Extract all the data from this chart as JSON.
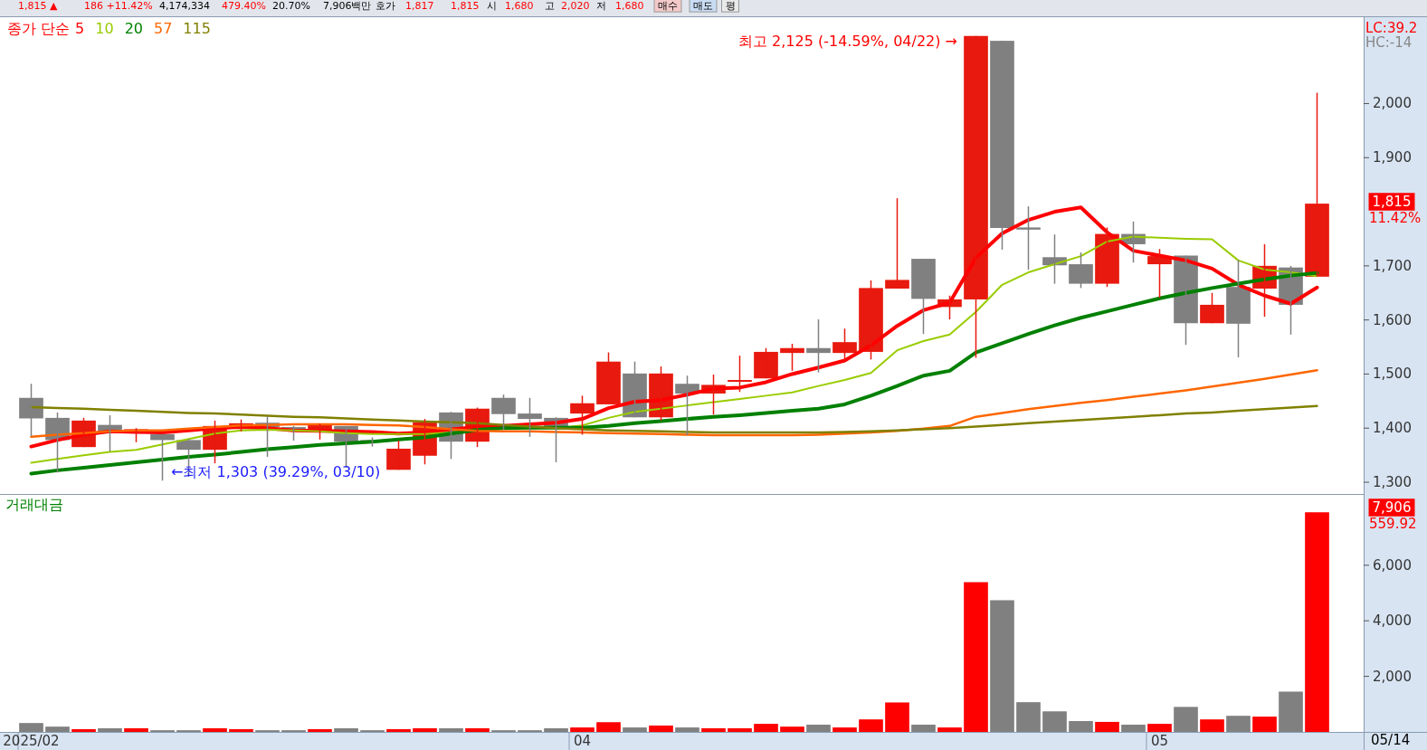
{
  "chart_data": [
    {
      "type": "candlestick",
      "legend_title": "종가 단순",
      "legend": "top left",
      "tick_labels": "y",
      "categories": [
        null,
        null,
        null,
        null,
        null,
        null,
        null,
        null,
        null,
        null,
        null,
        null,
        null,
        null,
        null,
        null,
        null,
        null,
        null,
        null,
        null,
        null,
        null,
        null,
        null,
        null,
        null,
        null,
        null,
        null,
        null,
        null,
        null,
        null,
        null,
        null,
        null,
        null,
        null,
        null,
        null,
        null,
        null,
        null,
        null,
        null,
        null,
        null,
        null,
        null
      ],
      "ohlc": [
        [
          1456,
          1482,
          1385,
          1418
        ],
        [
          1419,
          1429,
          1318,
          1378
        ],
        [
          1365,
          1419,
          1365,
          1414
        ],
        [
          1406,
          1424,
          1357,
          1395
        ],
        [
          1393,
          1400,
          1374,
          1398
        ],
        [
          1389,
          1389,
          1303,
          1378
        ],
        [
          1378,
          1380,
          1310,
          1360
        ],
        [
          1360,
          1414,
          1335,
          1404
        ],
        [
          1402,
          1416,
          1394,
          1409
        ],
        [
          1410,
          1422,
          1347,
          1402
        ],
        [
          1402,
          1404,
          1377,
          1398
        ],
        [
          1392,
          1408,
          1379,
          1406
        ],
        [
          1404,
          1404,
          1327,
          1375
        ],
        [
          1378,
          1383,
          1366,
          1374
        ],
        [
          1323,
          1377,
          1323,
          1362
        ],
        [
          1349,
          1417,
          1333,
          1411
        ],
        [
          1429,
          1430,
          1343,
          1375
        ],
        [
          1375,
          1438,
          1365,
          1436
        ],
        [
          1456,
          1462,
          1397,
          1426
        ],
        [
          1427,
          1456,
          1384,
          1417
        ],
        [
          1419,
          1420,
          1337,
          1403
        ],
        [
          1427,
          1460,
          1388,
          1446
        ],
        [
          1444,
          1540,
          1444,
          1523
        ],
        [
          1501,
          1523,
          1420,
          1420
        ],
        [
          1420,
          1514,
          1414,
          1501
        ],
        [
          1482,
          1497,
          1387,
          1464
        ],
        [
          1464,
          1499,
          1425,
          1480
        ],
        [
          1486,
          1534,
          1467,
          1489
        ],
        [
          1492,
          1548,
          1492,
          1541
        ],
        [
          1539,
          1556,
          1506,
          1548
        ],
        [
          1548,
          1601,
          1503,
          1539
        ],
        [
          1539,
          1584,
          1522,
          1559
        ],
        [
          1541,
          1673,
          1527,
          1659
        ],
        [
          1658,
          1825,
          1658,
          1674
        ],
        [
          1713,
          1713,
          1574,
          1639
        ],
        [
          1624,
          1645,
          1601,
          1638
        ],
        [
          1638,
          2125,
          1530,
          2125
        ],
        [
          2116,
          2116,
          1730,
          1770
        ],
        [
          1771,
          1810,
          1693,
          1767
        ],
        [
          1716,
          1758,
          1667,
          1701
        ],
        [
          1703,
          1725,
          1659,
          1667
        ],
        [
          1667,
          1771,
          1661,
          1759
        ],
        [
          1759,
          1782,
          1706,
          1740
        ],
        [
          1703,
          1731,
          1641,
          1718
        ],
        [
          1719,
          1719,
          1554,
          1594
        ],
        [
          1594,
          1650,
          1594,
          1628
        ],
        [
          1661,
          1711,
          1531,
          1593
        ],
        [
          1658,
          1740,
          1606,
          1700
        ],
        [
          1697,
          1700,
          1573,
          1628
        ],
        [
          1680,
          2020,
          1680,
          1815
        ]
      ],
      "colors": [
        "#808080",
        "#808080",
        "#e8190e",
        "#808080",
        "#e8190e",
        "#808080",
        "#808080",
        "#e8190e",
        "#e8190e",
        "#808080",
        "#808080",
        "#e8190e",
        "#808080",
        "#808080",
        "#e8190e",
        "#e8190e",
        "#808080",
        "#e8190e",
        "#808080",
        "#808080",
        "#808080",
        "#e8190e",
        "#e8190e",
        "#808080",
        "#e8190e",
        "#808080",
        "#e8190e",
        "#e8190e",
        "#e8190e",
        "#e8190e",
        "#808080",
        "#e8190e",
        "#e8190e",
        "#e8190e",
        "#808080",
        "#e8190e",
        "#e8190e",
        "#808080",
        "#808080",
        "#808080",
        "#808080",
        "#e8190e",
        "#808080",
        "#e8190e",
        "#808080",
        "#e8190e",
        "#808080",
        "#e8190e",
        "#808080",
        "#e8190e"
      ],
      "series": [
        {
          "name": "5",
          "type": "line",
          "color": "#ff0000",
          "values": [
            1366,
            1378,
            1388,
            1394,
            1393,
            1392,
            1396,
            1400,
            1402,
            1400,
            1396,
            1395,
            1394,
            1393,
            1390,
            1392,
            1398,
            1402,
            1404,
            1407,
            1410,
            1417,
            1437,
            1449,
            1452,
            1462,
            1473,
            1475,
            1485,
            1500,
            1512,
            1525,
            1553,
            1589,
            1618,
            1632,
            1715,
            1760,
            1785,
            1800,
            1808,
            1762,
            1728,
            1719,
            1710,
            1695,
            1665,
            1645,
            1630,
            1660
          ]
        },
        {
          "name": "10",
          "type": "line",
          "color": "#99cc00",
          "values": [
            1336,
            1343,
            1350,
            1356,
            1360,
            1370,
            1380,
            1390,
            1396,
            1397,
            1396,
            1394,
            1391,
            1389,
            1389,
            1389,
            1392,
            1397,
            1400,
            1400,
            1400,
            1405,
            1419,
            1430,
            1436,
            1442,
            1448,
            1454,
            1460,
            1466,
            1478,
            1489,
            1502,
            1544,
            1561,
            1573,
            1615,
            1665,
            1688,
            1703,
            1718,
            1745,
            1754,
            1752,
            1750,
            1749,
            1710,
            1693,
            1688,
            1681
          ]
        },
        {
          "name": "20",
          "type": "line",
          "color": "#008000",
          "values": [
            1316,
            1322,
            1327,
            1332,
            1337,
            1342,
            1347,
            1351,
            1356,
            1361,
            1365,
            1369,
            1372,
            1375,
            1379,
            1383,
            1390,
            1397,
            1400,
            1401,
            1401,
            1401,
            1404,
            1409,
            1413,
            1417,
            1421,
            1424,
            1428,
            1432,
            1436,
            1444,
            1460,
            1478,
            1497,
            1506,
            1540,
            1557,
            1574,
            1590,
            1604,
            1616,
            1628,
            1640,
            1650,
            1659,
            1667,
            1675,
            1682,
            1687
          ]
        },
        {
          "name": "57",
          "type": "line",
          "color": "#ff6600",
          "values": [
            1384,
            1388,
            1391,
            1394,
            1396,
            1396,
            1399,
            1402,
            1405,
            1406,
            1407,
            1407,
            1407,
            1406,
            1405,
            1402,
            1398,
            1395,
            1394,
            1394,
            1393,
            1392,
            1391,
            1390,
            1389,
            1388,
            1387,
            1387,
            1387,
            1387,
            1388,
            1390,
            1392,
            1395,
            1399,
            1404,
            1421,
            1428,
            1435,
            1441,
            1447,
            1452,
            1458,
            1464,
            1470,
            1477,
            1484,
            1491,
            1499,
            1507
          ]
        },
        {
          "name": "115",
          "type": "line",
          "color": "#808000",
          "values": [
            1439,
            1437,
            1436,
            1434,
            1432,
            1430,
            1428,
            1427,
            1425,
            1423,
            1421,
            1420,
            1418,
            1416,
            1414,
            1412,
            1411,
            1409,
            1406,
            1403,
            1400,
            1398,
            1396,
            1395,
            1394,
            1393,
            1392,
            1392,
            1392,
            1392,
            1392,
            1393,
            1394,
            1396,
            1398,
            1400,
            1403,
            1406,
            1409,
            1412,
            1415,
            1418,
            1421,
            1424,
            1427,
            1429,
            1432,
            1435,
            1438,
            1441
          ]
        }
      ],
      "ylim": [
        1280,
        2158
      ],
      "yticks": [
        {
          "value": 1300,
          "label": "1,300"
        },
        {
          "value": 1400,
          "label": "1,400"
        },
        {
          "value": 1500,
          "label": "1,500"
        },
        {
          "value": 1600,
          "label": "1,600"
        },
        {
          "value": 1700,
          "label": "1,700"
        },
        {
          "value": 1900,
          "label": "1,900"
        },
        {
          "value": 2000,
          "label": "2,000"
        }
      ],
      "annotations": [
        "최고 2,125 (-14.59%, 04/22) →",
        "←최저 1,303 (39.29%, 03/10)",
        "LC:39.2",
        "HC:-14",
        "1,815",
        "11.42%",
        "1,815 ▲",
        "186 +11.42%",
        "4,174,334",
        "479.40%",
        "20.70%",
        "7,906백만",
        "호가",
        "1,817",
        "1,815",
        "시",
        "1,680",
        "고",
        "2,020",
        "저",
        "1,680",
        "매수",
        "매도",
        "평"
      ]
    },
    {
      "type": "bar",
      "title": "거래대금",
      "categories": [
        "2025/02",
        null,
        null,
        null,
        null,
        null,
        null,
        null,
        null,
        null,
        null,
        null,
        null,
        null,
        null,
        null,
        null,
        null,
        null,
        null,
        null,
        "04",
        null,
        null,
        null,
        null,
        null,
        null,
        null,
        null,
        null,
        null,
        null,
        null,
        null,
        null,
        null,
        null,
        null,
        null,
        null,
        null,
        null,
        "05",
        null,
        null,
        null,
        null,
        null,
        null
      ],
      "values": [
        320,
        190,
        100,
        130,
        130,
        60,
        60,
        130,
        100,
        60,
        60,
        100,
        130,
        60,
        100,
        130,
        130,
        130,
        60,
        60,
        130,
        160,
        350,
        160,
        230,
        160,
        130,
        130,
        290,
        190,
        260,
        160,
        450,
        1060,
        260,
        160,
        5390,
        4740,
        1070,
        740,
        390,
        360,
        260,
        290,
        900,
        450,
        580,
        550,
        1450,
        7906
      ],
      "colors": [
        "#808080",
        "#808080",
        "#ff0000",
        "#808080",
        "#ff0000",
        "#808080",
        "#808080",
        "#ff0000",
        "#ff0000",
        "#808080",
        "#808080",
        "#ff0000",
        "#808080",
        "#808080",
        "#ff0000",
        "#ff0000",
        "#808080",
        "#ff0000",
        "#808080",
        "#808080",
        "#808080",
        "#ff0000",
        "#ff0000",
        "#808080",
        "#ff0000",
        "#808080",
        "#ff0000",
        "#ff0000",
        "#ff0000",
        "#ff0000",
        "#808080",
        "#ff0000",
        "#ff0000",
        "#ff0000",
        "#808080",
        "#ff0000",
        "#ff0000",
        "#808080",
        "#808080",
        "#808080",
        "#808080",
        "#ff0000",
        "#808080",
        "#ff0000",
        "#808080",
        "#ff0000",
        "#808080",
        "#ff0000",
        "#808080",
        "#ff0000"
      ],
      "ylim": [
        0,
        8500
      ],
      "yticks": [
        {
          "value": 2000,
          "label": "2,000"
        },
        {
          "value": 4000,
          "label": "4,000"
        },
        {
          "value": 6000,
          "label": "6,000"
        }
      ],
      "annotations": [
        "7,906",
        "559.92",
        "05/14"
      ]
    }
  ]
}
